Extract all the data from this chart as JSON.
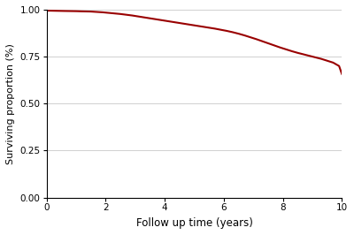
{
  "title": "",
  "xlabel": "Follow up time (years)",
  "ylabel": "Surviving proportion (%)",
  "line_color": "#990000",
  "line_width": 1.5,
  "background_color": "#ffffff",
  "xlim": [
    0,
    10
  ],
  "ylim": [
    0.0,
    1.0
  ],
  "xticks": [
    0,
    2,
    4,
    6,
    8,
    10
  ],
  "yticks": [
    0.0,
    0.25,
    0.5,
    0.75,
    1.0
  ],
  "ytick_labels": [
    "0.00",
    "0.25",
    "0.50",
    "0.75",
    "1.00"
  ],
  "grid_color": "#d0d0d0",
  "grid_linewidth": 0.7,
  "x": [
    0.0,
    0.3,
    0.6,
    1.0,
    1.2,
    1.5,
    1.7,
    1.9,
    2.1,
    2.3,
    2.5,
    2.7,
    2.9,
    3.1,
    3.3,
    3.5,
    3.7,
    3.9,
    4.1,
    4.3,
    4.5,
    4.7,
    4.9,
    5.1,
    5.3,
    5.5,
    5.7,
    5.9,
    6.1,
    6.3,
    6.5,
    6.7,
    6.9,
    7.1,
    7.3,
    7.5,
    7.7,
    7.9,
    8.1,
    8.3,
    8.5,
    8.7,
    8.9,
    9.1,
    9.3,
    9.5,
    9.7,
    9.9,
    10.0
  ],
  "y": [
    0.995,
    0.994,
    0.993,
    0.992,
    0.991,
    0.99,
    0.988,
    0.986,
    0.983,
    0.98,
    0.977,
    0.973,
    0.969,
    0.964,
    0.959,
    0.954,
    0.949,
    0.944,
    0.939,
    0.934,
    0.929,
    0.924,
    0.919,
    0.914,
    0.909,
    0.904,
    0.899,
    0.893,
    0.887,
    0.88,
    0.872,
    0.863,
    0.853,
    0.843,
    0.832,
    0.821,
    0.81,
    0.799,
    0.789,
    0.779,
    0.77,
    0.762,
    0.754,
    0.746,
    0.738,
    0.728,
    0.718,
    0.7,
    0.655
  ]
}
